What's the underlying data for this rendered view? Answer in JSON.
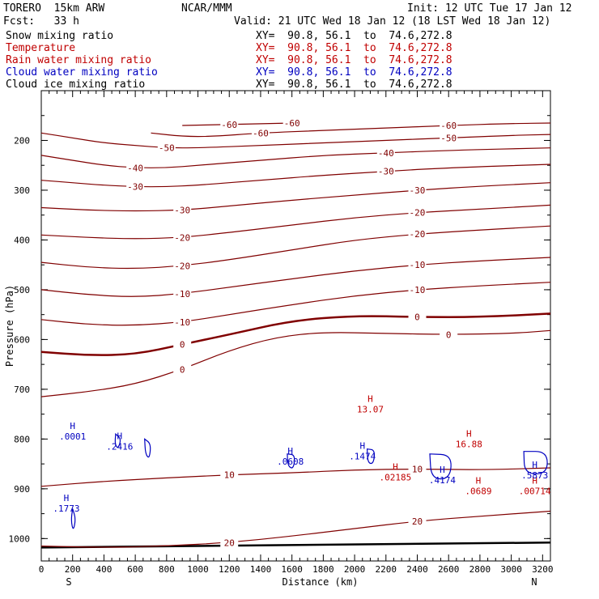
{
  "header": {
    "model": "TORERO  15km ARW",
    "org": "NCAR/MMM",
    "init": "Init: 12 UTC Tue 17 Jan 12",
    "fcst": "Fcst:   33 h",
    "valid": "Valid: 21 UTC Wed 18 Jan 12 (18 LST Wed 18 Jan 12)"
  },
  "fields": [
    {
      "name": "Snow mixing ratio",
      "xy": "XY=  90.8, 56.1  to  74.6,272.8",
      "color": "#000000"
    },
    {
      "name": "Temperature",
      "xy": "XY=  90.8, 56.1  to  74.6,272.8",
      "color": "#c00000"
    },
    {
      "name": "Rain water mixing ratio",
      "xy": "XY=  90.8, 56.1  to  74.6,272.8",
      "color": "#c00000"
    },
    {
      "name": "Cloud water mixing ratio",
      "xy": "XY=  90.8, 56.1  to  74.6,272.8",
      "color": "#0000c0"
    },
    {
      "name": "Cloud ice mixing ratio",
      "xy": "XY=  90.8, 56.1  to  74.6,272.8",
      "color": "#000000"
    }
  ],
  "chart_data": {
    "type": "contour-cross-section",
    "xlabel": "Distance (km)",
    "ylabel": "Pressure (hPa)",
    "xlim": [
      0,
      3250
    ],
    "ylim": [
      1045,
      100
    ],
    "x_ticks": [
      "0",
      "200",
      "400",
      "600",
      "800",
      "1000",
      "1200",
      "1400",
      "1600",
      "1800",
      "2000",
      "2200",
      "2400",
      "2600",
      "2800",
      "3000",
      "3200"
    ],
    "y_ticks": [
      "200",
      "300",
      "400",
      "500",
      "600",
      "700",
      "800",
      "900",
      "1000"
    ],
    "endpoints": {
      "left": "S",
      "right": "N"
    },
    "temperature_contours": [
      {
        "label": "-60",
        "points": [
          [
            700,
            185
          ],
          [
            900,
            192
          ],
          [
            1100,
            192
          ],
          [
            1400,
            185
          ],
          [
            1800,
            180
          ],
          [
            2200,
            175
          ],
          [
            2600,
            170
          ],
          [
            3000,
            166
          ],
          [
            3250,
            165
          ]
        ]
      },
      {
        "label": "-60",
        "points": [
          [
            900,
            170
          ],
          [
            1200,
            168
          ],
          [
            1600,
            165
          ]
        ]
      },
      {
        "label": "-50",
        "points": [
          [
            0,
            185
          ],
          [
            200,
            195
          ],
          [
            400,
            205
          ],
          [
            600,
            210
          ],
          [
            800,
            215
          ],
          [
            1000,
            215
          ],
          [
            1400,
            210
          ],
          [
            1800,
            205
          ],
          [
            2200,
            200
          ],
          [
            2600,
            195
          ],
          [
            3000,
            190
          ],
          [
            3250,
            188
          ]
        ]
      },
      {
        "label": "-40",
        "points": [
          [
            0,
            230
          ],
          [
            200,
            240
          ],
          [
            400,
            250
          ],
          [
            600,
            255
          ],
          [
            800,
            255
          ],
          [
            1000,
            250
          ],
          [
            1400,
            240
          ],
          [
            1800,
            230
          ],
          [
            2200,
            225
          ],
          [
            2600,
            220
          ],
          [
            3250,
            215
          ]
        ]
      },
      {
        "label": "-30",
        "points": [
          [
            0,
            280
          ],
          [
            200,
            285
          ],
          [
            400,
            290
          ],
          [
            600,
            293
          ],
          [
            800,
            293
          ],
          [
            1000,
            290
          ],
          [
            1400,
            280
          ],
          [
            1800,
            270
          ],
          [
            2200,
            262
          ],
          [
            2600,
            255
          ],
          [
            3250,
            248
          ]
        ]
      },
      {
        "label": "-30",
        "points": [
          [
            0,
            335
          ],
          [
            300,
            340
          ],
          [
            600,
            342
          ],
          [
            900,
            340
          ],
          [
            1200,
            332
          ],
          [
            1600,
            320
          ],
          [
            2000,
            310
          ],
          [
            2400,
            300
          ],
          [
            2800,
            292
          ],
          [
            3250,
            285
          ]
        ]
      },
      {
        "label": "-20",
        "points": [
          [
            0,
            390
          ],
          [
            300,
            395
          ],
          [
            600,
            398
          ],
          [
            900,
            395
          ],
          [
            1200,
            385
          ],
          [
            1600,
            370
          ],
          [
            2000,
            355
          ],
          [
            2400,
            345
          ],
          [
            2800,
            338
          ],
          [
            3250,
            330
          ]
        ]
      },
      {
        "label": "-20",
        "points": [
          [
            0,
            445
          ],
          [
            300,
            455
          ],
          [
            600,
            458
          ],
          [
            900,
            452
          ],
          [
            1200,
            440
          ],
          [
            1600,
            420
          ],
          [
            2000,
            400
          ],
          [
            2400,
            388
          ],
          [
            2800,
            380
          ],
          [
            3250,
            372
          ]
        ]
      },
      {
        "label": "-10",
        "points": [
          [
            0,
            500
          ],
          [
            300,
            510
          ],
          [
            600,
            515
          ],
          [
            900,
            508
          ],
          [
            1200,
            495
          ],
          [
            1600,
            478
          ],
          [
            2000,
            462
          ],
          [
            2400,
            450
          ],
          [
            2800,
            442
          ],
          [
            3250,
            435
          ]
        ]
      },
      {
        "label": "-10",
        "points": [
          [
            0,
            560
          ],
          [
            300,
            570
          ],
          [
            600,
            572
          ],
          [
            900,
            565
          ],
          [
            1200,
            550
          ],
          [
            1600,
            530
          ],
          [
            2000,
            512
          ],
          [
            2400,
            500
          ],
          [
            2800,
            492
          ],
          [
            3250,
            485
          ]
        ]
      },
      {
        "label": "0",
        "points": [
          [
            0,
            625
          ],
          [
            300,
            632
          ],
          [
            600,
            630
          ],
          [
            900,
            610
          ],
          [
            1200,
            590
          ],
          [
            1600,
            562
          ],
          [
            2000,
            552
          ],
          [
            2400,
            555
          ],
          [
            2800,
            555
          ],
          [
            3250,
            548
          ]
        ]
      },
      {
        "label": "0",
        "points": [
          [
            0,
            715
          ],
          [
            300,
            705
          ],
          [
            600,
            690
          ],
          [
            900,
            660
          ],
          [
            1200,
            622
          ],
          [
            1500,
            595
          ],
          [
            1800,
            585
          ],
          [
            2200,
            588
          ],
          [
            2600,
            590
          ],
          [
            3000,
            588
          ],
          [
            3250,
            582
          ]
        ]
      },
      {
        "label": "10",
        "points": [
          [
            0,
            895
          ],
          [
            400,
            885
          ],
          [
            800,
            878
          ],
          [
            1200,
            872
          ],
          [
            1600,
            868
          ],
          [
            2000,
            862
          ],
          [
            2400,
            860
          ],
          [
            2800,
            862
          ],
          [
            3250,
            858
          ]
        ]
      },
      {
        "label": "20",
        "points": [
          [
            0,
            1015
          ],
          [
            400,
            1018
          ],
          [
            800,
            1015
          ],
          [
            1200,
            1008
          ],
          [
            1600,
            995
          ],
          [
            2000,
            980
          ],
          [
            2400,
            965
          ],
          [
            2800,
            955
          ],
          [
            3250,
            945
          ]
        ]
      }
    ],
    "cloud_water_contours": [
      {
        "label": ".0001",
        "points": [
          [
            475,
            790
          ],
          [
            510,
            800
          ],
          [
            490,
            820
          ],
          [
            470,
            810
          ],
          [
            475,
            790
          ]
        ]
      },
      {
        "label": ".2416",
        "points": [
          [
            660,
            800
          ],
          [
            700,
            810
          ],
          [
            690,
            840
          ],
          [
            665,
            830
          ],
          [
            660,
            800
          ]
        ]
      },
      {
        "label": ".0608",
        "points": [
          [
            1570,
            830
          ],
          [
            1620,
            832
          ],
          [
            1610,
            860
          ],
          [
            1575,
            855
          ],
          [
            1570,
            830
          ]
        ]
      },
      {
        "label": ".1474",
        "points": [
          [
            2080,
            820
          ],
          [
            2130,
            822
          ],
          [
            2120,
            850
          ],
          [
            2085,
            848
          ],
          [
            2080,
            820
          ]
        ]
      },
      {
        "label": ".4174",
        "points": [
          [
            2480,
            830
          ],
          [
            2620,
            832
          ],
          [
            2610,
            880
          ],
          [
            2490,
            880
          ],
          [
            2480,
            830
          ]
        ]
      },
      {
        "label": ".5873",
        "points": [
          [
            3080,
            825
          ],
          [
            3230,
            825
          ],
          [
            3230,
            870
          ],
          [
            3085,
            870
          ],
          [
            3080,
            825
          ]
        ]
      },
      {
        "label": ".1773",
        "points": [
          [
            200,
            940
          ],
          [
            220,
            960
          ],
          [
            205,
            985
          ],
          [
            190,
            965
          ],
          [
            200,
            940
          ]
        ]
      }
    ],
    "annotations": [
      {
        "text": "H",
        "sub": ".0001",
        "color": "blue",
        "x": 200,
        "y": 780
      },
      {
        "text": "H",
        "sub": ".2416",
        "color": "blue",
        "x": 500,
        "y": 800
      },
      {
        "text": "H",
        "sub": ".0608",
        "color": "blue",
        "x": 1590,
        "y": 830
      },
      {
        "text": "H",
        "sub": ".1474",
        "color": "blue",
        "x": 2050,
        "y": 820
      },
      {
        "text": "H",
        "sub": ".4174",
        "color": "blue",
        "x": 2560,
        "y": 868
      },
      {
        "text": "H",
        "sub": ".1773",
        "color": "blue",
        "x": 160,
        "y": 925
      },
      {
        "text": "H",
        "sub": "13.07",
        "color": "red",
        "x": 2100,
        "y": 725
      },
      {
        "text": "H",
        "sub": "16.88",
        "color": "red",
        "x": 2730,
        "y": 795
      },
      {
        "text": "H",
        "sub": ".02185",
        "color": "red",
        "x": 2260,
        "y": 862
      },
      {
        "text": "H",
        "sub": ".0689",
        "color": "red",
        "x": 2790,
        "y": 890
      },
      {
        "text": "H",
        "sub": ".00714",
        "color": "red",
        "x": 3150,
        "y": 890
      },
      {
        "text": "H",
        "sub": ".5873",
        "color": "blue",
        "x": 3150,
        "y": 858
      }
    ]
  }
}
